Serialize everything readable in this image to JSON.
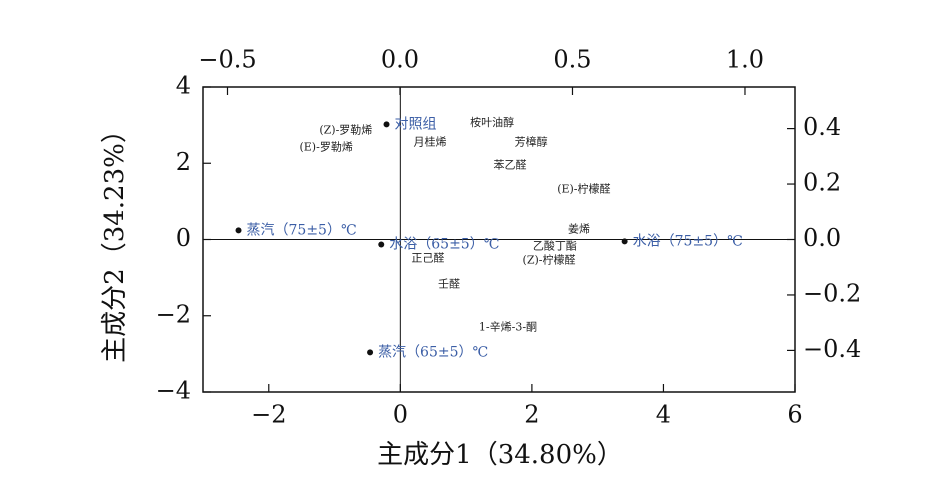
{
  "chart_data": {
    "type": "biplot",
    "x_label": "主成分1（34.80%）",
    "y_label": "主成分2（34.23%）",
    "xlim": [
      -3,
      6
    ],
    "ylim": [
      -4,
      4
    ],
    "xticks": [
      {
        "value": -2,
        "label": "−2"
      },
      0,
      2,
      4,
      6
    ],
    "yticks": [
      {
        "value": -4,
        "label": "−4"
      },
      {
        "value": -2,
        "label": "−2"
      },
      0,
      2,
      4
    ],
    "x2lim": [
      -0.571,
      1.145
    ],
    "y2lim": [
      -0.55,
      0.55
    ],
    "x2ticks": [
      {
        "value": -0.5,
        "label": "−0.5"
      },
      {
        "value": 0,
        "label": "0.0"
      },
      {
        "value": 0.5,
        "label": "0.5"
      },
      {
        "value": 1,
        "label": "1.0"
      }
    ],
    "y2ticks": [
      {
        "value": 0.4,
        "label": "0.4"
      },
      {
        "value": 0.2,
        "label": "0.2"
      },
      {
        "value": 0,
        "label": "0.0"
      },
      {
        "value": -0.2,
        "label": "−0.2"
      },
      {
        "value": -0.4,
        "label": "−0.4"
      }
    ],
    "series": [
      {
        "role": "scores",
        "color": "#3b5ea6",
        "labels": [
          "对照组",
          "蒸汽（75±5）℃",
          "水浴（65±5）℃",
          "水浴（75±5）℃",
          "蒸汽（65±5）℃"
        ],
        "x": [
          -0.21,
          -2.46,
          -0.29,
          3.41,
          -0.46
        ],
        "values": [
          3.02,
          0.24,
          -0.13,
          -0.05,
          -2.96
        ]
      },
      {
        "role": "loadings",
        "axis": "y2",
        "color": "#222222",
        "labels": [
          "(Z)-罗勒烯",
          "(E)-罗勒烯",
          "月桂烯",
          "桉叶油醇",
          "芳樟醇",
          "苯乙醛",
          "(E)-柠檬醛",
          "姜烯",
          "乙酸丁酯",
          "(Z)-柠檬醛",
          "正己醛",
          "壬醛",
          "1-辛烯-3-酮"
        ],
        "x": [
          -0.157,
          -0.214,
          0.087,
          0.267,
          0.38,
          0.319,
          0.533,
          0.519,
          0.449,
          0.432,
          0.081,
          0.142,
          0.313
        ],
        "values": [
          0.393,
          0.332,
          0.35,
          0.42,
          0.35,
          0.267,
          0.18,
          0.036,
          -0.025,
          -0.076,
          -0.068,
          -0.162,
          -0.317
        ]
      }
    ]
  }
}
